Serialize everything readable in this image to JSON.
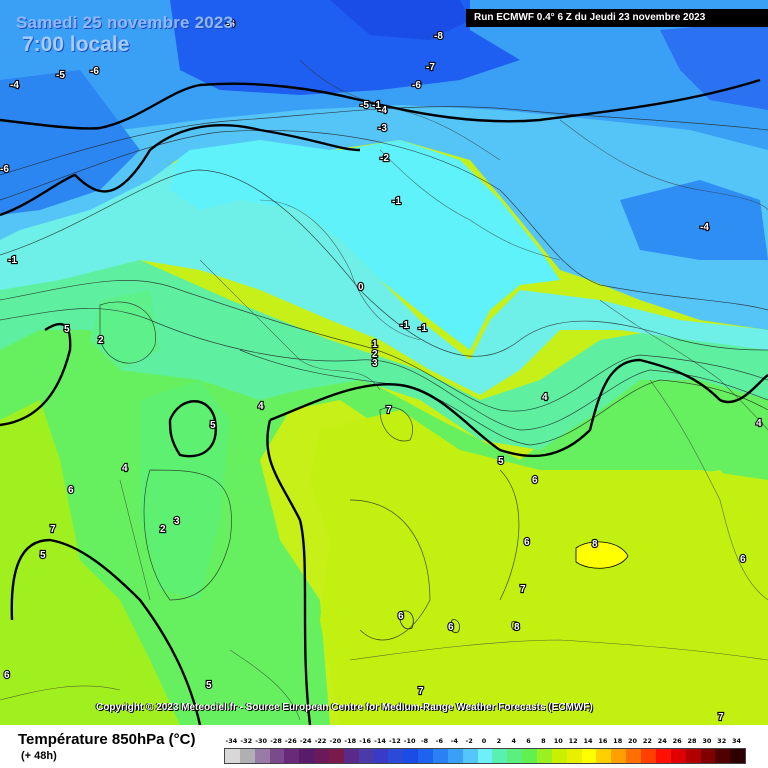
{
  "header": {
    "date": "Samedi 25 novembre 2023",
    "time": "7:00 locale",
    "run": "Run ECMWF 0.4° 6 Z du Jeudi 23 novembre 2023"
  },
  "copyright": "Copyright © 2023 Meteociel.fr - Source European Centre for Medium-Range Weather Forecasts (ECMWF)",
  "legend": {
    "title": "Température 850hPa (°C)",
    "lead": "(+ 48h)",
    "ticks": [
      "-34",
      "-32",
      "-30",
      "-28",
      "-26",
      "-24",
      "-22",
      "-20",
      "-18",
      "-16",
      "-14",
      "-12",
      "-10",
      "-8",
      "-6",
      "-4",
      "-2",
      "0",
      "2",
      "4",
      "6",
      "8",
      "10",
      "12",
      "14",
      "16",
      "18",
      "20",
      "22",
      "24",
      "26",
      "28",
      "30",
      "32",
      "34"
    ],
    "colors": [
      "#d8d8d8",
      "#b0b0b0",
      "#9a7aa8",
      "#7a4a8a",
      "#6a2a7a",
      "#5a1a6a",
      "#6a1a5a",
      "#7a1a4a",
      "#5a2a8a",
      "#4a3aaa",
      "#3a3ac8",
      "#2a4ad8",
      "#1a4ce6",
      "#1e62f0",
      "#2a80f4",
      "#3aa0f6",
      "#55c6fa",
      "#6ef0fa",
      "#5af0b0",
      "#5af080",
      "#60f050",
      "#9af020",
      "#c8f000",
      "#e8f000",
      "#ffff00",
      "#ffd000",
      "#ffa000",
      "#ff7000",
      "#ff4000",
      "#ff1000",
      "#e00000",
      "#b00000",
      "#800000",
      "#500000",
      "#300000"
    ]
  },
  "map_labels": [
    {
      "text": "-6"
    },
    {
      "text": "-5"
    },
    {
      "text": "-6"
    },
    {
      "text": "-4"
    },
    {
      "text": "-6"
    },
    {
      "text": "-8"
    },
    {
      "text": "-7"
    },
    {
      "text": "-6"
    },
    {
      "text": "-5"
    },
    {
      "text": "-4"
    },
    {
      "text": "-3"
    },
    {
      "text": "-2"
    },
    {
      "text": "-1"
    },
    {
      "text": "-1"
    },
    {
      "text": "-4"
    },
    {
      "text": "-1"
    },
    {
      "text": "-1"
    },
    {
      "text": "-1"
    },
    {
      "text": "0"
    },
    {
      "text": "5"
    },
    {
      "text": "2"
    },
    {
      "text": "1"
    },
    {
      "text": "2"
    },
    {
      "text": "3"
    },
    {
      "text": "4"
    },
    {
      "text": "5"
    },
    {
      "text": "7"
    },
    {
      "text": "4"
    },
    {
      "text": "4"
    },
    {
      "text": "5"
    },
    {
      "text": "6"
    },
    {
      "text": "6"
    },
    {
      "text": "3"
    },
    {
      "text": "2"
    },
    {
      "text": "7"
    },
    {
      "text": "5"
    },
    {
      "text": "6"
    },
    {
      "text": "8"
    },
    {
      "text": "7"
    },
    {
      "text": "6"
    },
    {
      "text": "6"
    },
    {
      "text": "8"
    },
    {
      "text": "5"
    },
    {
      "text": "7"
    },
    {
      "text": "6"
    },
    {
      "text": "6"
    },
    {
      "text": "7"
    },
    {
      "text": "4"
    }
  ]
}
